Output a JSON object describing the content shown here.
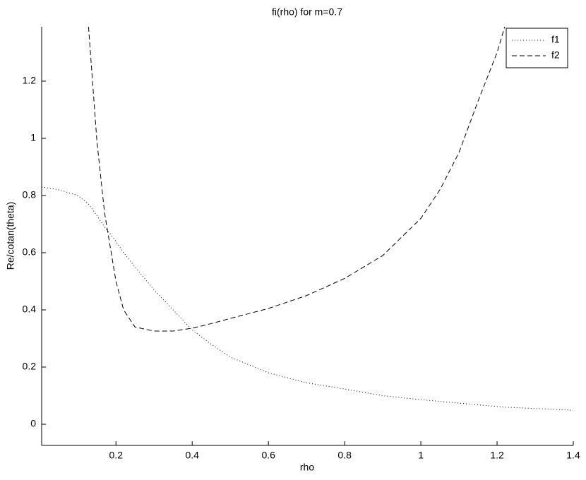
{
  "chart_data": {
    "type": "line",
    "title": "fi(rho) for m=0.7",
    "x_label": "rho",
    "y_label": "Re/cotan(theta)",
    "x": [
      0.005,
      0.05,
      0.1,
      0.128,
      0.15,
      0.17,
      0.2,
      0.22,
      0.25,
      0.3,
      0.35,
      0.4,
      0.45,
      0.5,
      0.6,
      0.7,
      0.8,
      0.9,
      1.0,
      1.05,
      1.1,
      1.15,
      1.2,
      1.22,
      1.3,
      1.4
    ],
    "series": [
      {
        "name": "f1",
        "color": "#000000",
        "style": "dotted",
        "values": [
          0.83,
          0.82,
          0.8,
          0.77,
          0.73,
          0.69,
          0.64,
          0.6,
          0.55,
          0.47,
          0.4,
          0.33,
          0.28,
          0.235,
          0.18,
          0.145,
          0.123,
          0.1,
          0.086,
          0.08,
          0.074,
          0.068,
          0.062,
          0.06,
          0.055,
          0.049
        ]
      },
      {
        "name": "f2",
        "color": "#000000",
        "style": "dashed",
        "values": [
          null,
          null,
          null,
          1.39,
          0.99,
          0.74,
          0.5,
          0.4,
          0.34,
          0.326,
          0.326,
          0.336,
          0.352,
          0.37,
          0.405,
          0.45,
          0.51,
          0.59,
          0.72,
          0.82,
          0.95,
          1.13,
          1.3,
          1.39,
          null,
          null
        ]
      }
    ],
    "xlim": [
      0.005,
      1.4
    ],
    "ylim": [
      -0.074,
      1.39
    ],
    "xticks": [
      0.2,
      0.4,
      0.6,
      0.8,
      1,
      1.2,
      1.4
    ],
    "yticks": [
      0,
      0.2,
      0.4,
      0.6,
      0.8,
      1,
      1.2
    ],
    "grid": false,
    "legend": "top-right"
  }
}
